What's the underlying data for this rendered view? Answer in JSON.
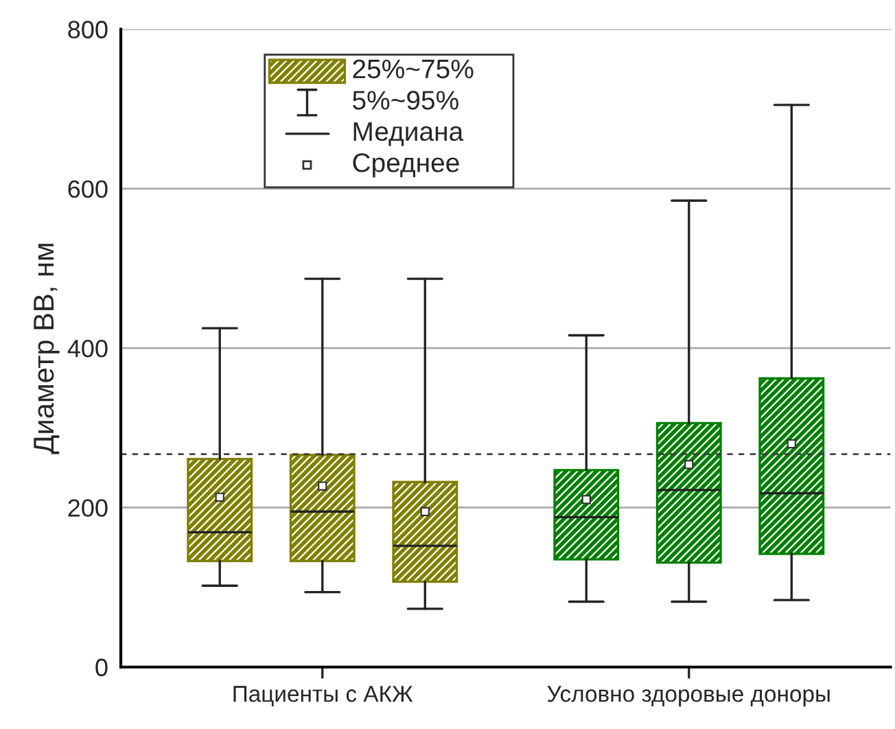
{
  "chart_data": {
    "type": "box",
    "ylabel": "Диаметр ВВ, нм",
    "categories": [
      "Пациенты с АКЖ",
      "Условно здоровые доноры"
    ],
    "series": [
      {
        "colors": [
          "#808000",
          "#008000"
        ],
        "boxes": [
          {
            "low": 102,
            "q1": 133,
            "median": 169,
            "q3": 261,
            "high": 425,
            "mean": 213
          },
          {
            "low": 82,
            "q1": 135,
            "median": 188,
            "q3": 247,
            "high": 416,
            "mean": 210
          }
        ]
      },
      {
        "colors": [
          "#808000",
          "#008000"
        ],
        "boxes": [
          {
            "low": 94,
            "q1": 133,
            "median": 195,
            "q3": 266,
            "high": 487,
            "mean": 227
          },
          {
            "low": 82,
            "q1": 131,
            "median": 222,
            "q3": 306,
            "high": 585,
            "mean": 254
          }
        ]
      },
      {
        "colors": [
          "#808000",
          "#008000"
        ],
        "boxes": [
          {
            "low": 73,
            "q1": 107,
            "median": 152,
            "q3": 232,
            "high": 487,
            "mean": 195
          },
          {
            "low": 84,
            "q1": 142,
            "median": 218,
            "q3": 362,
            "high": 705,
            "mean": 280
          }
        ]
      }
    ],
    "ylim": [
      0,
      800
    ],
    "yticks": [
      0,
      200,
      400,
      600,
      800
    ],
    "grid": "y",
    "ref_lines": [
      {
        "axis": "y",
        "value": 267,
        "line_style": "dashed",
        "color": "#404040"
      }
    ],
    "annotations": [
      "25%~75%",
      "5%~95%",
      "Медиана",
      "Среднее"
    ]
  }
}
